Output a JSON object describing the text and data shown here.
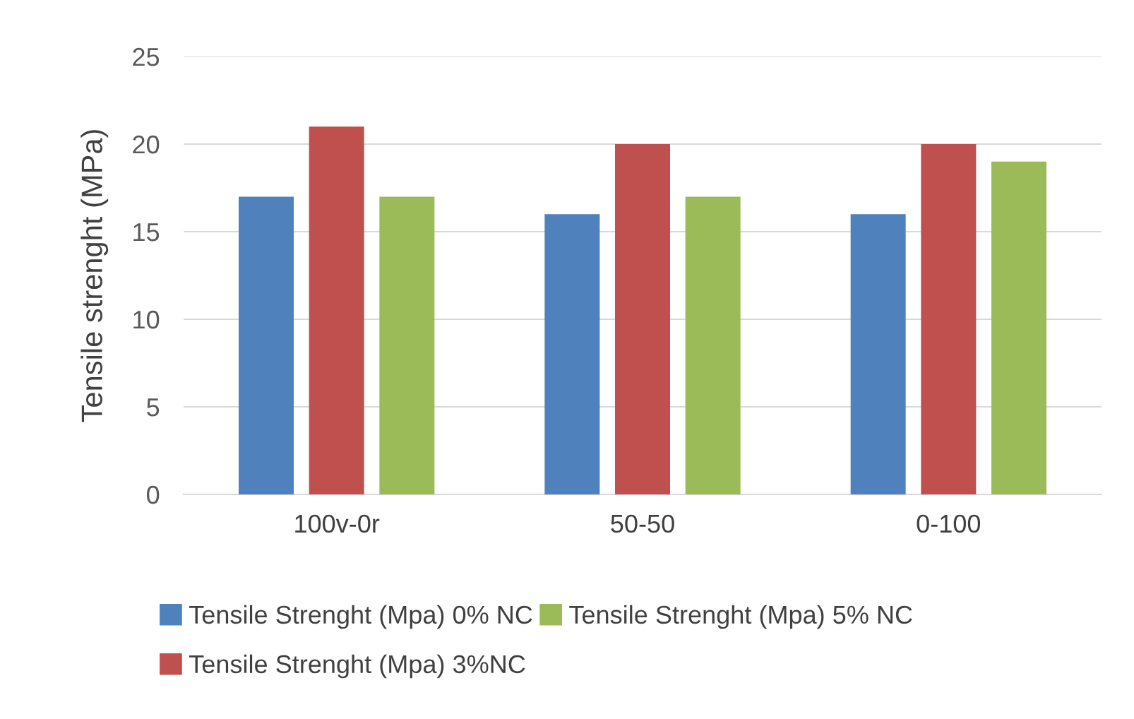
{
  "chart_data": {
    "type": "bar",
    "ylabel": "Tensile strenght (MPa)",
    "categories": [
      "100v-0r",
      "50-50",
      "0-100"
    ],
    "series": [
      {
        "name": "Tensile Strenght (Mpa) 0% NC",
        "color": "#4f81bd",
        "values": [
          17,
          16,
          16
        ]
      },
      {
        "name": "Tensile Strenght (Mpa) 3%NC",
        "color": "#c0504d",
        "values": [
          21,
          20,
          20
        ]
      },
      {
        "name": "Tensile Strenght (Mpa) 5% NC",
        "color": "#9bbb59",
        "values": [
          17,
          17,
          19
        ]
      }
    ],
    "ylim": [
      0,
      25
    ],
    "yticks": [
      0,
      5,
      10,
      15,
      20,
      25
    ],
    "grid": "y",
    "legend": "bottom"
  }
}
